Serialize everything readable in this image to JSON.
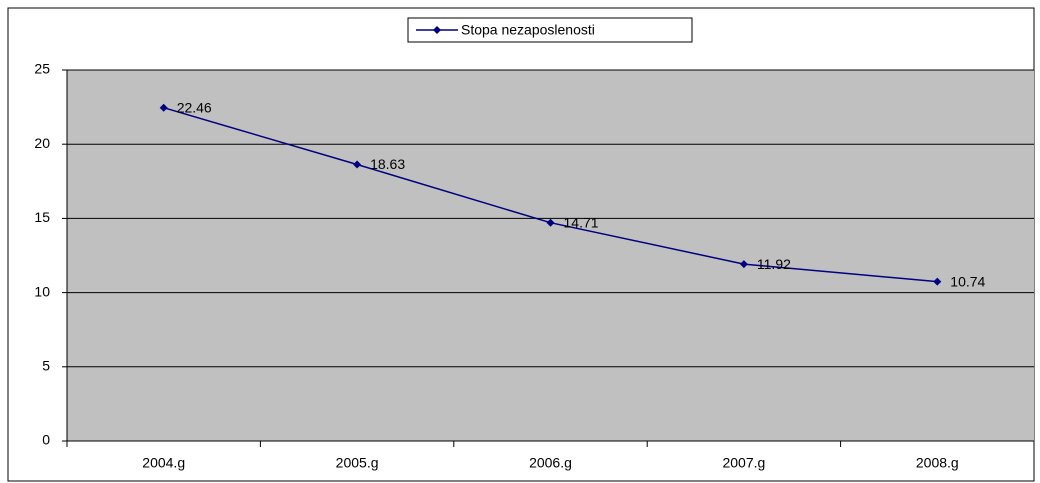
{
  "chart_data": {
    "type": "line",
    "categories": [
      "2004.g",
      "2005.g",
      "2006.g",
      "2007.g",
      "2008.g"
    ],
    "series": [
      {
        "name": "Stopa nezaposlenosti",
        "color": "#000080",
        "values": [
          22.46,
          18.63,
          14.71,
          11.92,
          10.74
        ]
      }
    ],
    "ylim": [
      0,
      25
    ],
    "yticks": [
      0,
      5,
      10,
      15,
      20,
      25
    ],
    "grid": true,
    "legend": "top",
    "data_labels": true
  }
}
